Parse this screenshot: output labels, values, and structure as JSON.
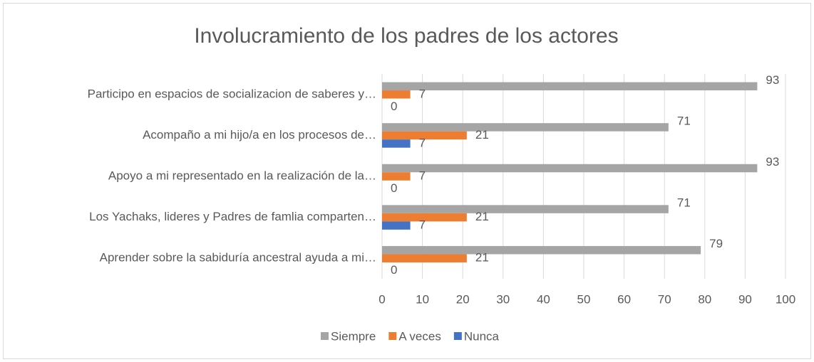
{
  "chart_data": {
    "type": "barh",
    "title": "Involucramiento de los padres de los actores",
    "categories": [
      "Participo en espacios de socializacion de saberes y…",
      "Acompaño a mi hijo/a en los procesos de…",
      "Apoyo a mi representado en la realización de la…",
      "Los Yachaks, lideres y Padres de famlia comparten…",
      "Aprender sobre la sabiduría ancestral ayuda a mi…"
    ],
    "series": [
      {
        "name": "Siempre",
        "color": "#a5a5a5",
        "values": [
          93,
          71,
          93,
          71,
          79
        ]
      },
      {
        "name": "A veces",
        "color": "#ed7d31",
        "values": [
          7,
          21,
          7,
          21,
          21
        ]
      },
      {
        "name": "Nunca",
        "color": "#4472c4",
        "values": [
          0,
          7,
          0,
          7,
          0
        ]
      }
    ],
    "xlim": [
      0,
      100
    ],
    "xticks": [
      0,
      10,
      20,
      30,
      40,
      50,
      60,
      70,
      80,
      90,
      100
    ],
    "grid": true,
    "legend": "bottom"
  }
}
